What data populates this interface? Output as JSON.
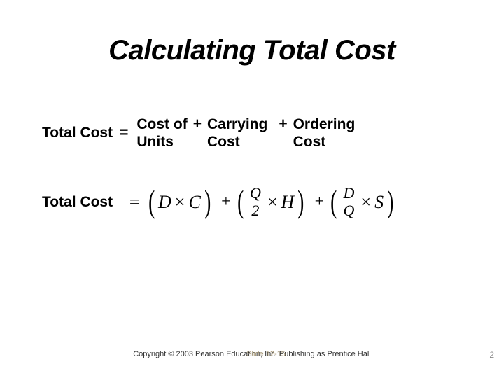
{
  "title": "Calculating Total Cost",
  "wordEquation": {
    "lhs": "Total Cost",
    "equals": "=",
    "term1_line1": "Cost of",
    "term1_line2": "Units",
    "plus1": "+",
    "term2_line1": "Carrying",
    "term2_line2": "Cost",
    "plus2": "+",
    "term3_line1": "Ordering",
    "term3_line2": "Cost"
  },
  "formula": {
    "lhs": "Total Cost",
    "equals": "=",
    "t1": {
      "lparen": "(",
      "a": "D",
      "op": "×",
      "b": "C",
      "rparen": ")"
    },
    "plus1": "+",
    "t2": {
      "lparen": "(",
      "frac_num": "Q",
      "frac_den": "2",
      "op": "×",
      "b": "H",
      "rparen": ")"
    },
    "plus2": "+",
    "t3": {
      "lparen": "(",
      "frac_num": "D",
      "frac_den": "Q",
      "op": "×",
      "b": "S",
      "rparen": ")"
    }
  },
  "copyright": "Copyright © 2003 Pearson Education, Inc.  Publishing as Prentice Hall",
  "copyrightGhost": "Slide 12-15",
  "pageNum": "2",
  "style": {
    "title_fontsize": 40,
    "title_italic": true,
    "title_bold": true,
    "body_fontsize": 21,
    "body_bold": true,
    "math_fontfamily": "Times New Roman",
    "math_fontsize": 26,
    "text_color": "#000000",
    "bg_color": "#ffffff",
    "copyright_fontsize": 11,
    "copyright_color": "#333333"
  }
}
